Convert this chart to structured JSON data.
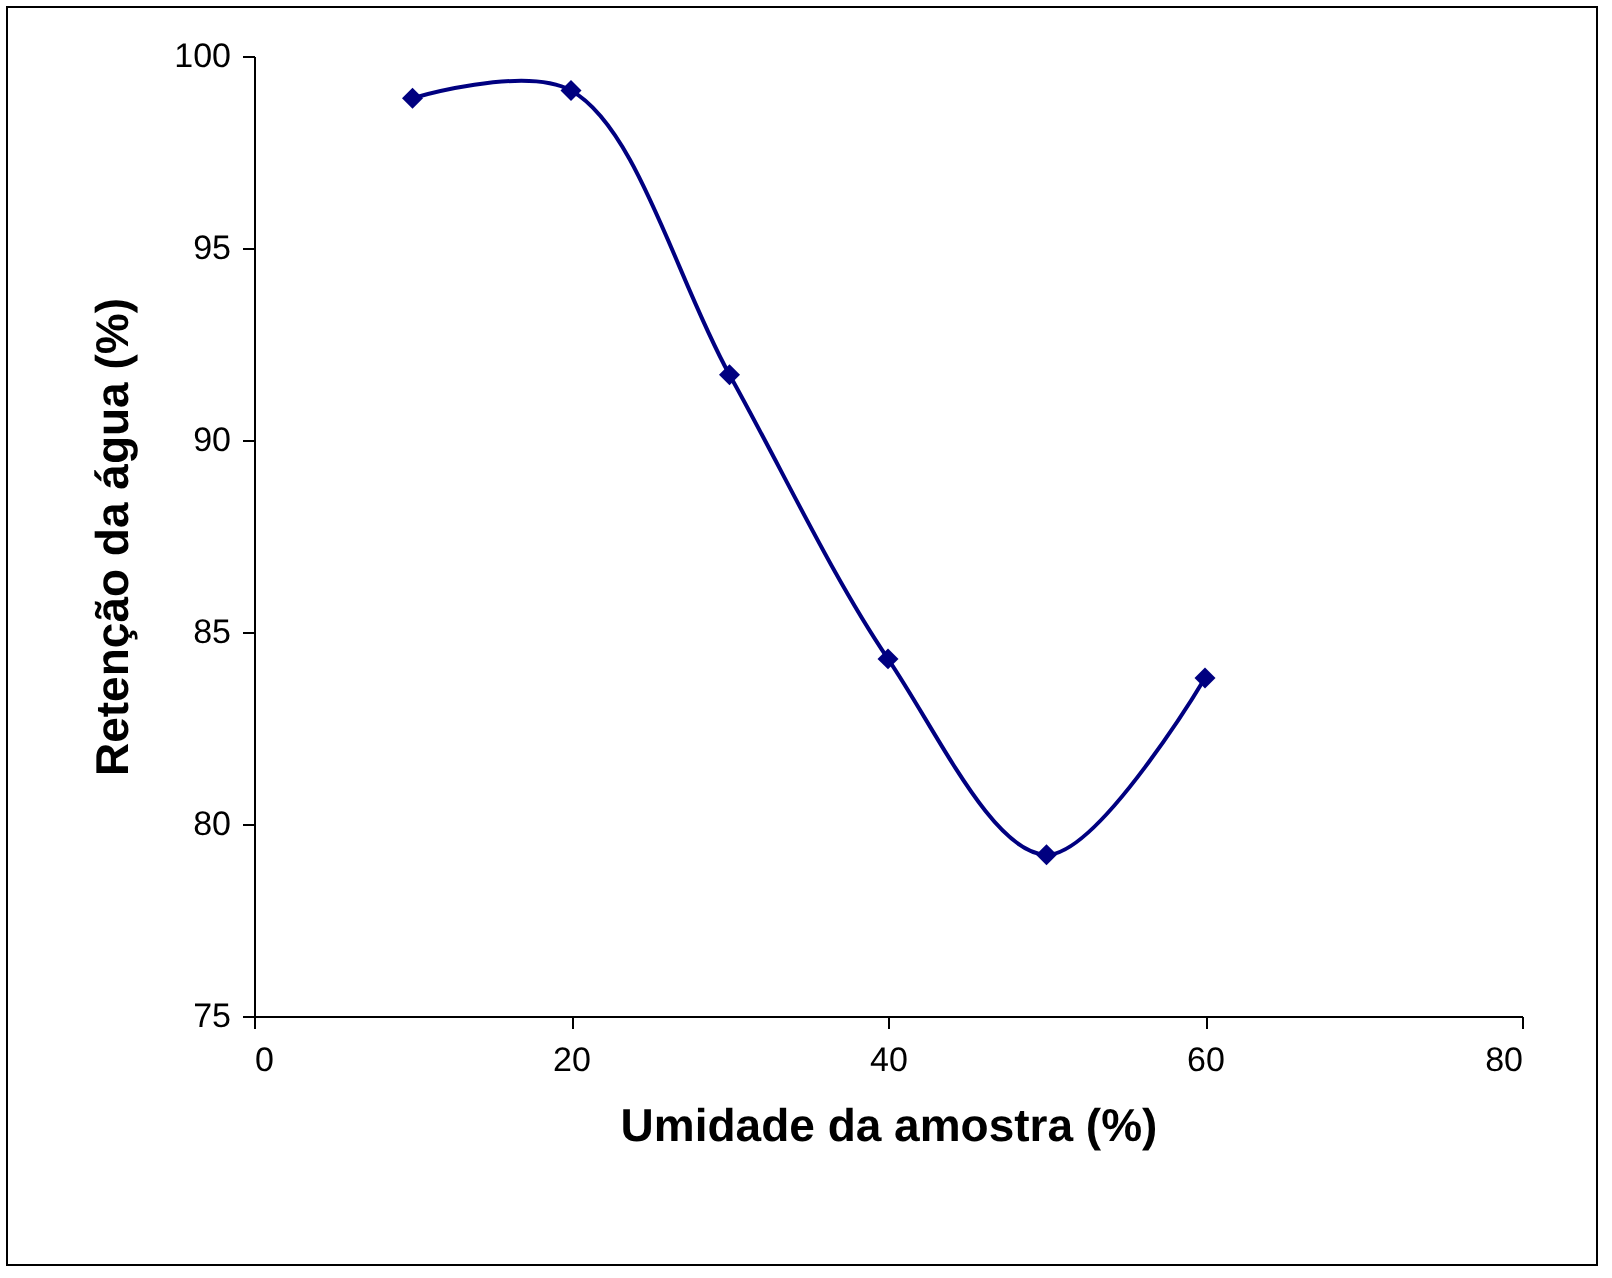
{
  "chart_data": {
    "type": "line",
    "xlabel": "Umidade da amostra (%)",
    "ylabel": "Retenção da água (%)",
    "x": [
      10,
      20,
      30,
      40,
      50,
      60
    ],
    "series": [
      {
        "color": "#000080",
        "values": [
          98.9,
          99.1,
          91.7,
          84.3,
          79.2,
          83.8
        ]
      }
    ],
    "xlim": [
      0,
      80
    ],
    "xticks": [
      0,
      20,
      40,
      60,
      80
    ],
    "ylim": [
      75,
      100
    ],
    "yticks": [
      75,
      80,
      85,
      90,
      95,
      100
    ],
    "grid": false,
    "legend": false,
    "marker": "diamond",
    "line_style": "solid"
  }
}
